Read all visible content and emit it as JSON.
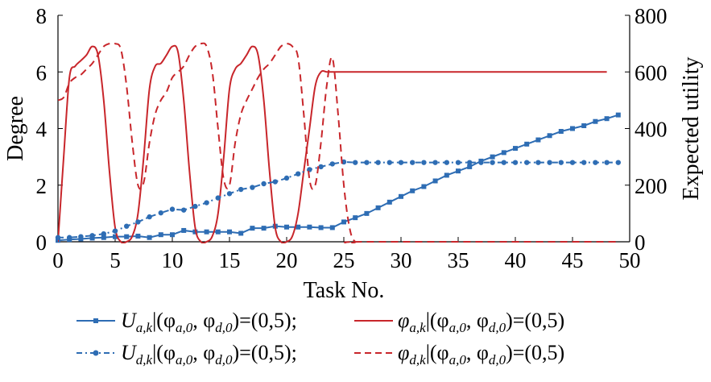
{
  "chart_data": {
    "type": "line",
    "xlabel": "Task No.",
    "ylabel_left": "Degree",
    "ylabel_right": "Expected utility",
    "xlim": [
      0,
      50
    ],
    "ylim_left": [
      0,
      8
    ],
    "ylim_right": [
      0,
      800
    ],
    "x_ticks": [
      "0",
      "5",
      "10",
      "15",
      "20",
      "25",
      "30",
      "35",
      "40",
      "45",
      "50"
    ],
    "y_ticks_left": [
      "0",
      "2",
      "4",
      "6",
      "8"
    ],
    "y_ticks_right": [
      "0",
      "200",
      "400",
      "600",
      "800"
    ],
    "grid": false,
    "legend_position": "bottom",
    "series": [
      {
        "name": "U_{a,k}|(φ_{a,0}, φ_{d,0})=(0,5);",
        "axis": "right",
        "color": "#2e6db4",
        "style": "solid-square",
        "x": [
          0,
          1,
          2,
          3,
          4,
          5,
          6,
          7,
          8,
          9,
          10,
          11,
          12,
          13,
          14,
          15,
          16,
          17,
          18,
          19,
          20,
          21,
          22,
          23,
          24,
          25,
          26,
          27,
          28,
          29,
          30,
          31,
          32,
          33,
          34,
          35,
          36,
          37,
          38,
          39,
          40,
          41,
          42,
          43,
          44,
          45,
          46,
          47,
          48,
          49
        ],
        "values": [
          5,
          8,
          10,
          13,
          15,
          18,
          18,
          20,
          15,
          25,
          25,
          40,
          35,
          35,
          35,
          35,
          30,
          48,
          48,
          55,
          52,
          52,
          52,
          50,
          50,
          70,
          85,
          100,
          120,
          140,
          160,
          180,
          195,
          215,
          235,
          250,
          265,
          285,
          300,
          315,
          330,
          345,
          360,
          375,
          390,
          400,
          410,
          425,
          435,
          448
        ]
      },
      {
        "name": "φ_{a,k}|(φ_{a,0}, φ_{d,0})=(0,5)",
        "axis": "left",
        "color": "#c8262b",
        "style": "solid",
        "x": [
          0,
          0.5,
          1,
          1.5,
          2,
          2.5,
          3,
          3.5,
          4,
          4.5,
          5,
          5.5,
          6,
          6.5,
          7,
          7.5,
          8,
          8.5,
          9,
          9.5,
          10,
          10.5,
          11,
          11.5,
          12,
          12.5,
          13,
          13.5,
          14,
          14.5,
          15,
          15.5,
          16,
          16.5,
          17,
          17.5,
          18,
          18.5,
          19,
          19.5,
          20,
          20.5,
          21,
          21.5,
          22,
          22.5,
          23,
          23.5,
          24,
          24.5,
          25,
          25.5,
          26,
          48
        ],
        "values": [
          0,
          3,
          5.8,
          6.2,
          6.4,
          6.6,
          6.9,
          6.6,
          5,
          2.5,
          0.5,
          0,
          0,
          0.2,
          1,
          3,
          5.4,
          6.2,
          6.3,
          6.6,
          6.9,
          6.7,
          5,
          2.5,
          0.5,
          0,
          0,
          0.2,
          1,
          3,
          5.4,
          6.1,
          6.3,
          6.6,
          6.9,
          6.6,
          5,
          2.5,
          0.5,
          0,
          0,
          0.2,
          1,
          2.5,
          4,
          5.5,
          6,
          6,
          6,
          6,
          6,
          6,
          6,
          6
        ]
      },
      {
        "name": "U_{d,k}|(φ_{a,0}, φ_{d,0})=(0,5);",
        "axis": "right",
        "color": "#2e6db4",
        "style": "dash-dot",
        "x": [
          0,
          1,
          2,
          3,
          4,
          5,
          6,
          7,
          8,
          9,
          10,
          11,
          12,
          13,
          14,
          15,
          16,
          17,
          18,
          19,
          20,
          21,
          22,
          23,
          24,
          25,
          26,
          27,
          28,
          29,
          30,
          31,
          32,
          33,
          34,
          35,
          36,
          37,
          38,
          39,
          40,
          41,
          42,
          43,
          44,
          45,
          46,
          47,
          48,
          49
        ],
        "values": [
          15,
          15,
          18,
          22,
          28,
          38,
          55,
          70,
          88,
          102,
          115,
          112,
          125,
          138,
          155,
          170,
          185,
          192,
          205,
          212,
          225,
          240,
          255,
          265,
          275,
          282,
          280,
          280,
          280,
          280,
          280,
          280,
          280,
          280,
          280,
          280,
          280,
          280,
          280,
          280,
          280,
          280,
          280,
          280,
          280,
          280,
          280,
          280,
          280,
          280
        ]
      },
      {
        "name": "φ_{d,k}|(φ_{a,0}, φ_{d,0})=(0,5)",
        "axis": "left",
        "color": "#c8262b",
        "style": "dashed",
        "x": [
          0,
          0.5,
          1,
          1.5,
          2,
          2.5,
          3,
          3.5,
          4,
          4.5,
          5,
          5.5,
          6,
          6.5,
          7,
          7.5,
          8,
          8.5,
          9,
          9.5,
          10,
          10.5,
          11,
          11.5,
          12,
          12.5,
          13,
          13.5,
          14,
          14.5,
          15,
          15.5,
          16,
          16.5,
          17,
          17.5,
          18,
          18.5,
          19,
          19.5,
          20,
          20.5,
          21,
          21.5,
          22,
          22.5,
          23,
          23.5,
          24,
          24.5,
          25,
          25.5,
          26,
          27,
          49
        ],
        "values": [
          5,
          5.1,
          5.6,
          5.8,
          5.9,
          6.1,
          6.3,
          6.6,
          6.9,
          7,
          7,
          6.8,
          5.5,
          3.5,
          2,
          2.1,
          3.5,
          4.5,
          5,
          5.3,
          5.8,
          6,
          6.2,
          6.6,
          6.9,
          7,
          6.9,
          6,
          4,
          2.2,
          2,
          3.5,
          4.5,
          5,
          5.4,
          5.8,
          6.1,
          6.3,
          6.6,
          6.9,
          7,
          6.9,
          6.5,
          4.5,
          2.2,
          2,
          3.5,
          5.5,
          6.5,
          4.5,
          2,
          0.5,
          0,
          0,
          0
        ]
      }
    ]
  },
  "legend": {
    "row1_left": "U_{a,k}|(φ_{a,0}, φ_{d,0})=(0,5);",
    "row1_right": "φ_{a,k}|(φ_{a,0}, φ_{d,0})=(0,5)",
    "row2_left": "U_{d,k}|(φ_{a,0}, φ_{d,0})=(0,5);",
    "row2_right": "φ_{d,k}|(φ_{a,0}, φ_{d,0})=(0,5)"
  }
}
